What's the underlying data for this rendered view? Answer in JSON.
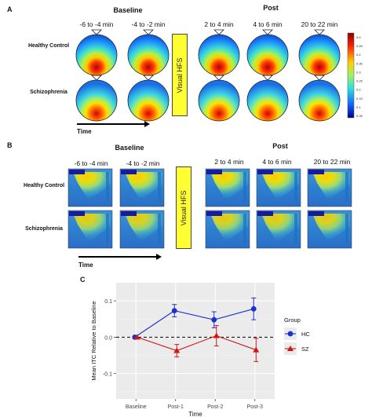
{
  "panelA": {
    "label": "A",
    "baseline_title": "Baseline",
    "post_title": "Post",
    "baseline_times": [
      "-6 to -4 min",
      "-4 to -2 min"
    ],
    "post_times": [
      "2 to 4 min",
      "4 to 6 min",
      "20 to 22 min"
    ],
    "rows": [
      "Healthy Control",
      "Schizophrenia"
    ],
    "hfs_label": "Visual HFS",
    "time_label": "Time",
    "colorbar_ticks": [
      "0.5",
      "0.45",
      "0.4",
      "0.35",
      "0.3",
      "0.25",
      "0.2",
      "0.15",
      "0.1",
      "0.05"
    ]
  },
  "panelB": {
    "label": "B",
    "baseline_title": "Baseline",
    "post_title": "Post",
    "baseline_times": [
      "-6 to -4 min",
      "-4 to -2 min"
    ],
    "post_times": [
      "2 to 4 min",
      "4 to 6 min",
      "20 to 22 min"
    ],
    "rows": [
      "Healthy Control",
      "Schizophrenia"
    ],
    "hfs_label": "Visual HFS",
    "time_label": "Time"
  },
  "panelC": {
    "label": "C",
    "legend_title": "Group",
    "legend": [
      "HC",
      "SZ"
    ],
    "colors": {
      "HC": "#1c2fcf",
      "SZ": "#d11414"
    }
  },
  "chart_data": {
    "type": "line",
    "title": "",
    "xlabel": "Time",
    "ylabel": "Mean ITC Relative to Baseline",
    "categories": [
      "Baseline",
      "Post-1",
      "Post-2",
      "Post-3"
    ],
    "ylim": [
      -0.17,
      0.15
    ],
    "yticks": [
      "0.1",
      "0.0",
      "-0.1"
    ],
    "ytick_values": [
      0.1,
      0.0,
      -0.1
    ],
    "reference_line": 0.0,
    "grid": true,
    "legend_position": "right",
    "series": [
      {
        "name": "HC",
        "values": [
          0.0,
          0.073,
          0.048,
          0.078
        ],
        "err": [
          0.0,
          0.017,
          0.022,
          0.03
        ]
      },
      {
        "name": "SZ",
        "values": [
          0.0,
          -0.037,
          0.004,
          -0.035
        ],
        "err": [
          0.0,
          0.017,
          0.028,
          0.032
        ]
      }
    ]
  }
}
